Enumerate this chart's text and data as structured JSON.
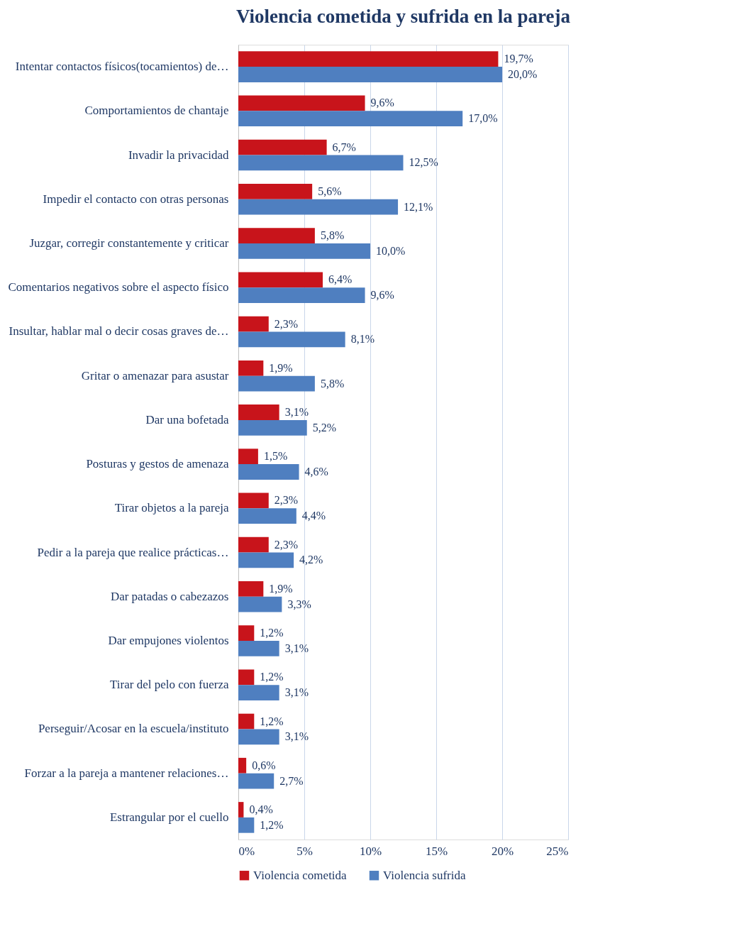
{
  "chart_data": {
    "type": "bar",
    "orientation": "horizontal",
    "title": "Violencia cometida y sufrida en la pareja",
    "categories": [
      "Intentar contactos físicos(tocamientos) de…",
      "Comportamientos de chantaje",
      "Invadir la privacidad",
      "Impedir el contacto con otras personas",
      "Juzgar, corregir constantemente y criticar",
      "Comentarios negativos sobre el aspecto físico",
      "Insultar, hablar mal o decir cosas graves de…",
      "Gritar o amenazar para asustar",
      "Dar una bofetada",
      "Posturas y gestos de amenaza",
      "Tirar objetos a la pareja",
      "Pedir a la pareja que realice prácticas…",
      "Dar patadas o cabezazos",
      "Dar empujones violentos",
      "Tirar del pelo con fuerza",
      "Perseguir/Acosar en la escuela/instituto",
      "Forzar a la pareja a mantener relaciones…",
      "Estrangular por el cuello"
    ],
    "series": [
      {
        "name": "Violencia cometida",
        "color": "#c8141b",
        "values": [
          19.7,
          9.6,
          6.7,
          5.6,
          5.8,
          6.4,
          2.3,
          1.9,
          3.1,
          1.5,
          2.3,
          2.3,
          1.9,
          1.2,
          1.2,
          1.2,
          0.6,
          0.4
        ],
        "value_labels": [
          "19,7%",
          "9,6%",
          "6,7%",
          "5,6%",
          "5,8%",
          "6,4%",
          "2,3%",
          "1,9%",
          "3,1%",
          "1,5%",
          "2,3%",
          "2,3%",
          "1,9%",
          "1,2%",
          "1,2%",
          "1,2%",
          "0,6%",
          "0,4%"
        ]
      },
      {
        "name": "Violencia sufrida",
        "color": "#4f7fc0",
        "values": [
          20.0,
          17.0,
          12.5,
          12.1,
          10.0,
          9.6,
          8.1,
          5.8,
          5.2,
          4.6,
          4.4,
          4.2,
          3.3,
          3.1,
          3.1,
          3.1,
          2.7,
          1.2
        ],
        "value_labels": [
          "20,0%",
          "17,0%",
          "12,5%",
          "12,1%",
          "10,0%",
          "9,6%",
          "8,1%",
          "5,8%",
          "5,2%",
          "4,6%",
          "4,4%",
          "4,2%",
          "3,3%",
          "3,1%",
          "3,1%",
          "3,1%",
          "2,7%",
          "1,2%"
        ]
      }
    ],
    "xlim": [
      0,
      25
    ],
    "xticks": [
      {
        "value": 0,
        "label": "0%"
      },
      {
        "value": 5,
        "label": "5%"
      },
      {
        "value": 10,
        "label": "10%"
      },
      {
        "value": 15,
        "label": "15%"
      },
      {
        "value": 20,
        "label": "20%"
      },
      {
        "value": 25,
        "label": "25%"
      }
    ],
    "grid": "x",
    "legend": "bottom"
  }
}
